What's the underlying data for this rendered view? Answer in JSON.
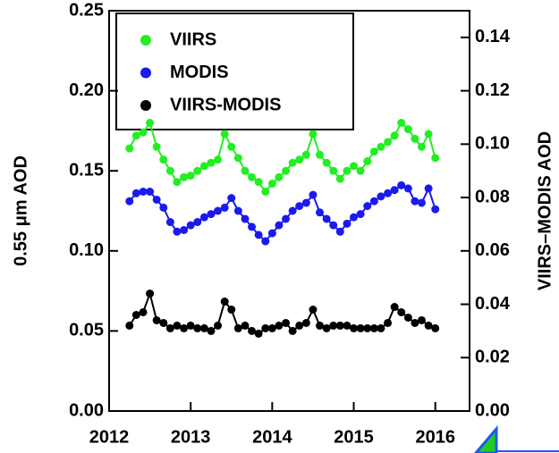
{
  "chart_data": {
    "type": "line",
    "ylabel": "0.55 μm AOD",
    "y2label": "VIIRS–MODIS AOD",
    "x": [
      2012.25,
      2012.333,
      2012.417,
      2012.5,
      2012.583,
      2012.667,
      2012.75,
      2012.833,
      2012.917,
      2013.0,
      2013.083,
      2013.167,
      2013.25,
      2013.333,
      2013.417,
      2013.5,
      2013.583,
      2013.667,
      2013.75,
      2013.833,
      2013.917,
      2014.0,
      2014.083,
      2014.167,
      2014.25,
      2014.333,
      2014.417,
      2014.5,
      2014.583,
      2014.667,
      2014.75,
      2014.833,
      2014.917,
      2015.0,
      2015.083,
      2015.167,
      2015.25,
      2015.333,
      2015.417,
      2015.5,
      2015.583,
      2015.667,
      2015.75,
      2015.833,
      2015.917,
      2016.0
    ],
    "series": [
      {
        "name": "VIIRS",
        "color": "#22ee22",
        "values": [
          0.164,
          0.172,
          0.174,
          0.18,
          0.165,
          0.157,
          0.15,
          0.143,
          0.146,
          0.147,
          0.15,
          0.153,
          0.155,
          0.157,
          0.173,
          0.165,
          0.158,
          0.15,
          0.146,
          0.143,
          0.137,
          0.142,
          0.146,
          0.15,
          0.155,
          0.157,
          0.16,
          0.173,
          0.16,
          0.155,
          0.15,
          0.145,
          0.15,
          0.153,
          0.15,
          0.156,
          0.162,
          0.165,
          0.168,
          0.172,
          0.18,
          0.176,
          0.17,
          0.165,
          0.173,
          0.158
        ]
      },
      {
        "name": "MODIS",
        "color": "#1a1aee",
        "values": [
          0.131,
          0.136,
          0.137,
          0.137,
          0.132,
          0.127,
          0.118,
          0.112,
          0.113,
          0.116,
          0.118,
          0.121,
          0.123,
          0.125,
          0.127,
          0.133,
          0.125,
          0.12,
          0.115,
          0.11,
          0.106,
          0.111,
          0.116,
          0.12,
          0.125,
          0.128,
          0.13,
          0.135,
          0.124,
          0.12,
          0.116,
          0.112,
          0.117,
          0.121,
          0.123,
          0.128,
          0.131,
          0.134,
          0.136,
          0.138,
          0.141,
          0.139,
          0.131,
          0.13,
          0.139,
          0.126
        ]
      },
      {
        "name": "VIIRS-MODIS",
        "color": "#000000",
        "axis": "y2",
        "values": [
          0.032,
          0.036,
          0.037,
          0.044,
          0.034,
          0.033,
          0.031,
          0.032,
          0.031,
          0.032,
          0.031,
          0.031,
          0.03,
          0.032,
          0.041,
          0.038,
          0.031,
          0.032,
          0.03,
          0.029,
          0.031,
          0.031,
          0.032,
          0.033,
          0.03,
          0.032,
          0.033,
          0.038,
          0.032,
          0.031,
          0.032,
          0.032,
          0.032,
          0.031,
          0.031,
          0.031,
          0.031,
          0.031,
          0.033,
          0.039,
          0.037,
          0.035,
          0.033,
          0.034,
          0.032,
          0.031
        ]
      }
    ],
    "xlim": [
      2012,
      2016.42
    ],
    "xticks": [
      2012,
      2013,
      2014,
      2015,
      2016
    ],
    "ylim": [
      0,
      0.25
    ],
    "yticks": [
      {
        "value": 0,
        "label": "0.00"
      },
      0.05,
      {
        "value": 0.1,
        "label": "0.10"
      },
      0.15,
      {
        "value": 0.2,
        "label": "0.20"
      },
      0.25
    ],
    "y2lim": [
      0,
      0.15
    ],
    "y2ticks": [
      {
        "value": 0,
        "label": "0.00"
      },
      0.02,
      0.04,
      0.06,
      0.08,
      {
        "value": 0.1,
        "label": "0.10"
      },
      0.12,
      0.14
    ],
    "legend": "upper left",
    "grid": false
  }
}
